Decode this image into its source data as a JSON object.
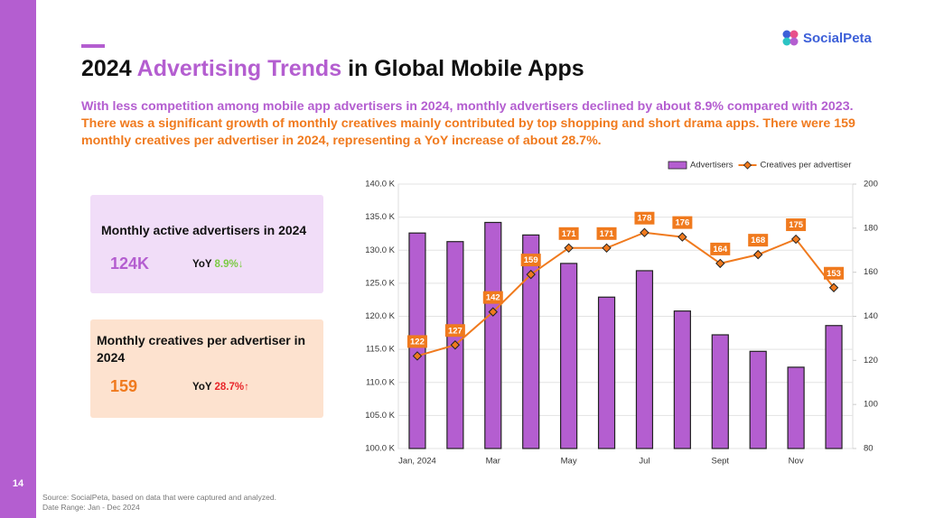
{
  "slide": {
    "page_number": "14",
    "brand": "SocialPeta",
    "title": {
      "before": "2024",
      "highlight": "Advertising Trends",
      "after": "in Global Mobile Apps"
    },
    "summary": {
      "part1": "With less competition among mobile app advertisers in 2024, monthly advertisers declined by about 8.9% compared with 2023.",
      "part2": "There was a significant growth of monthly creatives mainly contributed by top shopping and short drama apps. There were 159 monthly creatives per advertiser in 2024, representing a YoY increase of about 28.7%."
    },
    "cards": [
      {
        "label": "Monthly active advertisers in 2024",
        "value": "124K",
        "yoy_label": "YoY",
        "yoy": "8.9%↓"
      },
      {
        "label": "Monthly creatives per advertiser in 2024",
        "value": "159",
        "yoy_label": "YoY",
        "yoy": "28.7%↑"
      }
    ],
    "footer": {
      "source": "Source: SocialPeta, based on data that were captured and analyzed.",
      "date_range": "Date Range: Jan - Dec 2024"
    }
  },
  "chart_data": {
    "type": "bar_line",
    "categories": [
      "Jan, 2024",
      null,
      "Mar",
      null,
      "May",
      null,
      "Jul",
      null,
      "Sept",
      null,
      "Nov",
      null
    ],
    "series": [
      {
        "name": "Advertisers",
        "type": "bar",
        "color": "#b45ed0",
        "values": [
          132.6,
          131.3,
          134.2,
          132.3,
          128.0,
          122.9,
          126.9,
          120.8,
          117.2,
          114.7,
          112.3,
          118.6
        ]
      },
      {
        "name": "Creatives per advertiser",
        "type": "line",
        "axis": "y2",
        "color": "#f07a1e",
        "values": [
          122,
          127,
          142,
          159,
          171,
          171,
          178,
          176,
          164,
          168,
          175,
          153
        ]
      }
    ],
    "ylim": [
      100,
      140
    ],
    "yticks": [
      {
        "value": 100,
        "label": "100.0 K"
      },
      {
        "value": 105,
        "label": "105.0 K"
      },
      {
        "value": 110,
        "label": "110.0 K"
      },
      {
        "value": 115,
        "label": "115.0 K"
      },
      {
        "value": 120,
        "label": "120.0 K"
      },
      {
        "value": 125,
        "label": "125.0 K"
      },
      {
        "value": 130,
        "label": "130.0 K"
      },
      {
        "value": 135,
        "label": "135.0 K"
      },
      {
        "value": 140,
        "label": "140.0 K"
      }
    ],
    "y2lim": [
      80,
      200
    ],
    "y2ticks": [
      80,
      100,
      120,
      140,
      160,
      180,
      200
    ],
    "grid": true,
    "legend": "top-right"
  }
}
